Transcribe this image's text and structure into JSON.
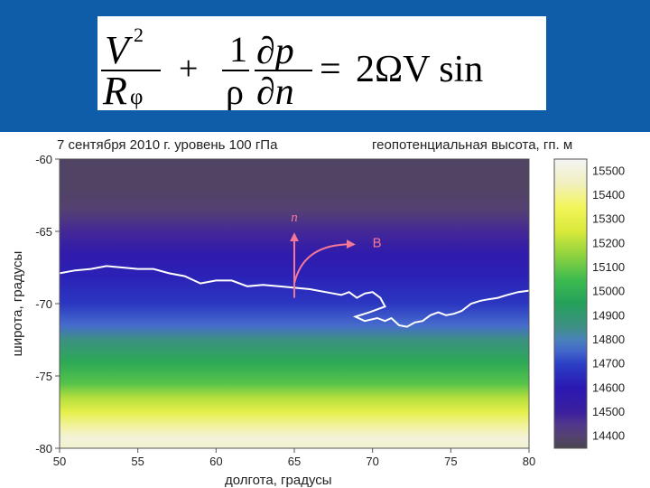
{
  "formula": {
    "v": "V",
    "exp2": "2",
    "r": "R",
    "phi": "φ",
    "plus": "+",
    "one": "1",
    "rho": "ρ",
    "dp": "∂p",
    "dn": "∂n",
    "equals": "=",
    "rhs": "2ΩV sin"
  },
  "chart_data": {
    "type": "heatmap",
    "title_left": "7 сентября 2010 г. уровень 100 гПа",
    "title_right": "геопотенциальная высота, гп. м",
    "xlabel": "долгота, градусы",
    "ylabel": "широта, градусы",
    "xlim": [
      50,
      80
    ],
    "ylim": [
      -80,
      -60
    ],
    "x_ticks": [
      "50",
      "55",
      "60",
      "65",
      "70",
      "75",
      "80"
    ],
    "y_ticks": [
      "-60",
      "-65",
      "-70",
      "-75",
      "-80"
    ],
    "colorbar": {
      "min": 14350,
      "max": 15550,
      "labels": [
        "15500",
        "15400",
        "15300",
        "15200",
        "15100",
        "15000",
        "14900",
        "14800",
        "14700",
        "14600",
        "14500",
        "14400"
      ]
    },
    "field_by_latitude": [
      {
        "lat": -60,
        "value": 14380
      },
      {
        "lat": -62,
        "value": 14380
      },
      {
        "lat": -63.5,
        "value": 14400
      },
      {
        "lat": -65,
        "value": 14480
      },
      {
        "lat": -66.5,
        "value": 14560
      },
      {
        "lat": -68,
        "value": 14620
      },
      {
        "lat": -70,
        "value": 14680
      },
      {
        "lat": -71.5,
        "value": 14760
      },
      {
        "lat": -72.5,
        "value": 14860
      },
      {
        "lat": -74,
        "value": 14980
      },
      {
        "lat": -75.5,
        "value": 15080
      },
      {
        "lat": -76.5,
        "value": 15200
      },
      {
        "lat": -77.5,
        "value": 15300
      },
      {
        "lat": -78.5,
        "value": 15420
      },
      {
        "lat": -79.3,
        "value": 15500
      },
      {
        "lat": -80,
        "value": 15480
      }
    ],
    "coastline": [
      [
        50,
        -67.9
      ],
      [
        51,
        -67.7
      ],
      [
        52,
        -67.6
      ],
      [
        53,
        -67.4
      ],
      [
        54,
        -67.5
      ],
      [
        55,
        -67.6
      ],
      [
        56,
        -67.6
      ],
      [
        57,
        -67.9
      ],
      [
        58,
        -68.1
      ],
      [
        59,
        -68.6
      ],
      [
        60,
        -68.4
      ],
      [
        61,
        -68.4
      ],
      [
        62,
        -68.8
      ],
      [
        63,
        -68.7
      ],
      [
        64,
        -68.8
      ],
      [
        65,
        -68.9
      ],
      [
        66,
        -69.0
      ],
      [
        67,
        -69.2
      ],
      [
        68,
        -69.4
      ],
      [
        68.5,
        -69.2
      ],
      [
        69,
        -69.6
      ],
      [
        69.5,
        -69.3
      ],
      [
        70,
        -69.2
      ],
      [
        70.5,
        -69.6
      ],
      [
        70.8,
        -70.2
      ],
      [
        69.8,
        -70.6
      ],
      [
        68.9,
        -70.9
      ],
      [
        69.5,
        -71.2
      ],
      [
        70.3,
        -71.0
      ],
      [
        70.8,
        -71.2
      ],
      [
        71.2,
        -71.0
      ],
      [
        71.7,
        -71.5
      ],
      [
        72.2,
        -71.6
      ],
      [
        72.7,
        -71.3
      ],
      [
        73.2,
        -71.2
      ],
      [
        73.7,
        -70.8
      ],
      [
        74.2,
        -70.6
      ],
      [
        74.7,
        -70.8
      ],
      [
        75.2,
        -70.7
      ],
      [
        75.7,
        -70.5
      ],
      [
        76.3,
        -70.0
      ],
      [
        76.9,
        -69.8
      ],
      [
        77.4,
        -69.7
      ],
      [
        78,
        -69.6
      ],
      [
        78.6,
        -69.4
      ],
      [
        79.3,
        -69.2
      ],
      [
        80,
        -69.1
      ]
    ],
    "annotations": {
      "n_label": "n",
      "b_label": "В",
      "color": "#f37896",
      "n_arrow": {
        "from": [
          65,
          -69.6
        ],
        "to": [
          65,
          -65.2
        ]
      },
      "b_arrow": {
        "from": [
          65,
          -68.6
        ],
        "control": [
          65.6,
          -65.8
        ],
        "to": [
          68.8,
          -65.9
        ]
      },
      "n_label_at": [
        65,
        -64.3
      ],
      "b_label_at": [
        70,
        -66.1
      ]
    }
  }
}
